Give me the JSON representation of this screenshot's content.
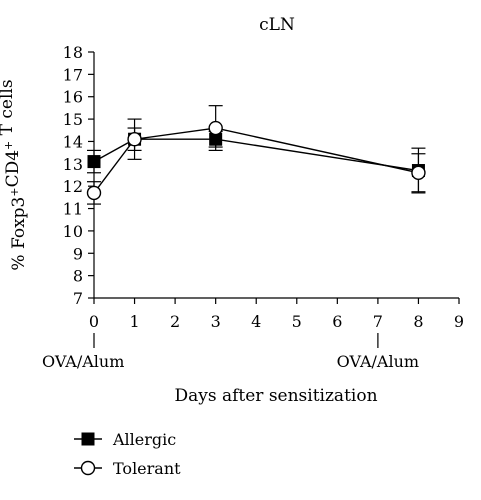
{
  "chart_data": {
    "type": "line",
    "title": "cLN",
    "xlabel": "Days after sensitization",
    "ylabel": "% Foxp3+CD4+ T cells",
    "xlim": [
      0,
      9
    ],
    "ylim": [
      7,
      18
    ],
    "xticks": [
      "0",
      "1",
      "2",
      "3",
      "4",
      "5",
      "6",
      "7",
      "8",
      "9"
    ],
    "yticks": [
      "7",
      "8",
      "9",
      "10",
      "11",
      "12",
      "13",
      "14",
      "15",
      "16",
      "17",
      "18"
    ],
    "annotations": [
      {
        "text": "OVA/Alum",
        "x": 0
      },
      {
        "text": "OVA/Alum",
        "x": 7
      }
    ],
    "grid": false,
    "legend_position": "bottom-left",
    "series": [
      {
        "name": "Allergic",
        "marker": "filled-square",
        "x": [
          0,
          1,
          3,
          8
        ],
        "y": [
          13.1,
          14.1,
          14.1,
          12.7
        ],
        "err": [
          0.5,
          0.9,
          0.35,
          1.0
        ]
      },
      {
        "name": "Tolerant",
        "marker": "open-circle",
        "x": [
          0,
          1,
          3,
          8
        ],
        "y": [
          11.7,
          14.1,
          14.6,
          12.6
        ],
        "err": [
          0.5,
          0.5,
          1.0,
          0.85
        ]
      }
    ]
  }
}
